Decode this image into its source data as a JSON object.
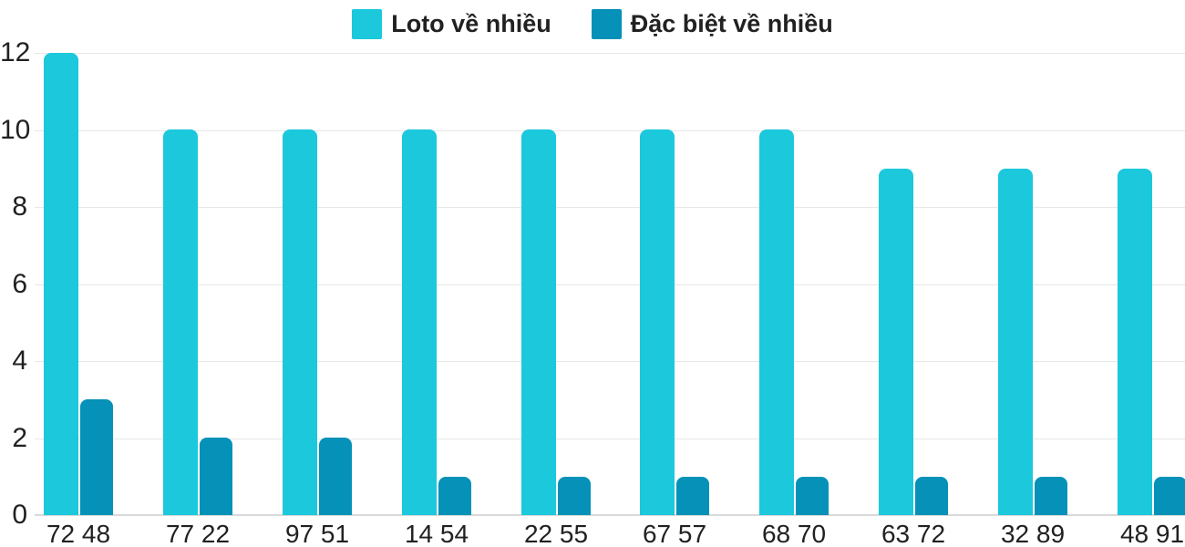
{
  "chart_data": {
    "type": "bar",
    "title": "",
    "xlabel": "",
    "ylabel": "",
    "categories": [
      "72 48",
      "77 22",
      "97 51",
      "14 54",
      "22 55",
      "67 57",
      "68 70",
      "63 72",
      "32 89",
      "48 91"
    ],
    "series": [
      {
        "name": "Loto về nhiều",
        "color": "#1BC8DC",
        "values": [
          12,
          10,
          10,
          10,
          10,
          10,
          10,
          9,
          9,
          9
        ]
      },
      {
        "name": "Đặc biệt về nhiều",
        "color": "#0591B8",
        "values": [
          3,
          2,
          2,
          1,
          1,
          1,
          1,
          1,
          1,
          1
        ]
      }
    ],
    "yticks": [
      0,
      2,
      4,
      6,
      8,
      10,
      12
    ],
    "ylim": [
      0,
      12
    ],
    "grid": true,
    "legend_position": "top-center",
    "colors": {
      "grid": "#E7E7E7",
      "axis_line": "#D9D9D9",
      "text": "#212121",
      "background": "#FFFFFF"
    }
  }
}
